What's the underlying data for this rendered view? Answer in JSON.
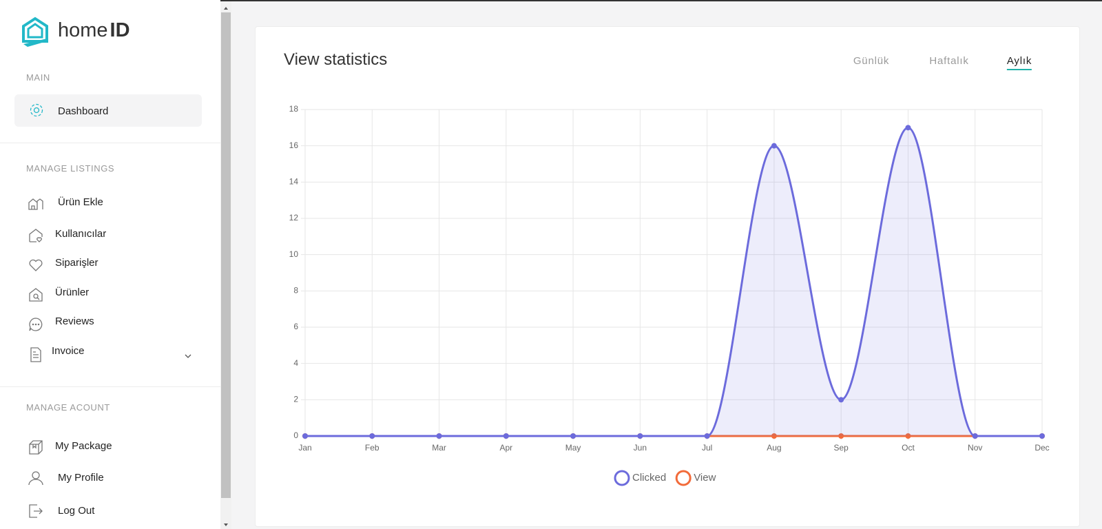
{
  "sidebar": {
    "logo": {
      "light": "home",
      "bold": "ID"
    },
    "sections": [
      {
        "title": "MAIN",
        "items": [
          "Dashboard"
        ]
      },
      {
        "title": "MANAGE LISTINGS",
        "items": [
          "Ürün Ekle",
          "Kullanıcılar",
          "Siparişler",
          "Ürünler",
          "Reviews",
          "Invoice"
        ]
      },
      {
        "title": "MANAGE ACOUNT",
        "items": [
          "My Package",
          "My Profile",
          "Log Out"
        ]
      }
    ]
  },
  "card": {
    "title": "View statistics",
    "tabs": [
      "Günlük",
      "Haftalık",
      "Aylık"
    ],
    "active_tab": 2
  },
  "chart_data": {
    "type": "line",
    "categories": [
      "Jan",
      "Feb",
      "Mar",
      "Apr",
      "May",
      "Jun",
      "Jul",
      "Aug",
      "Sep",
      "Oct",
      "Nov",
      "Dec"
    ],
    "series": [
      {
        "name": "Clicked",
        "color": "#6c6bdc",
        "values": [
          0,
          0,
          0,
          0,
          0,
          0,
          0,
          16,
          2,
          17,
          0,
          0
        ]
      },
      {
        "name": "View",
        "color": "#f26b3a",
        "values": [
          0,
          0,
          0,
          0,
          0,
          0,
          0,
          0,
          0,
          0,
          0,
          0
        ]
      }
    ],
    "ylim": [
      0,
      18
    ],
    "yticks": [
      0,
      2,
      4,
      6,
      8,
      10,
      12,
      14,
      16,
      18
    ],
    "grid": true
  }
}
